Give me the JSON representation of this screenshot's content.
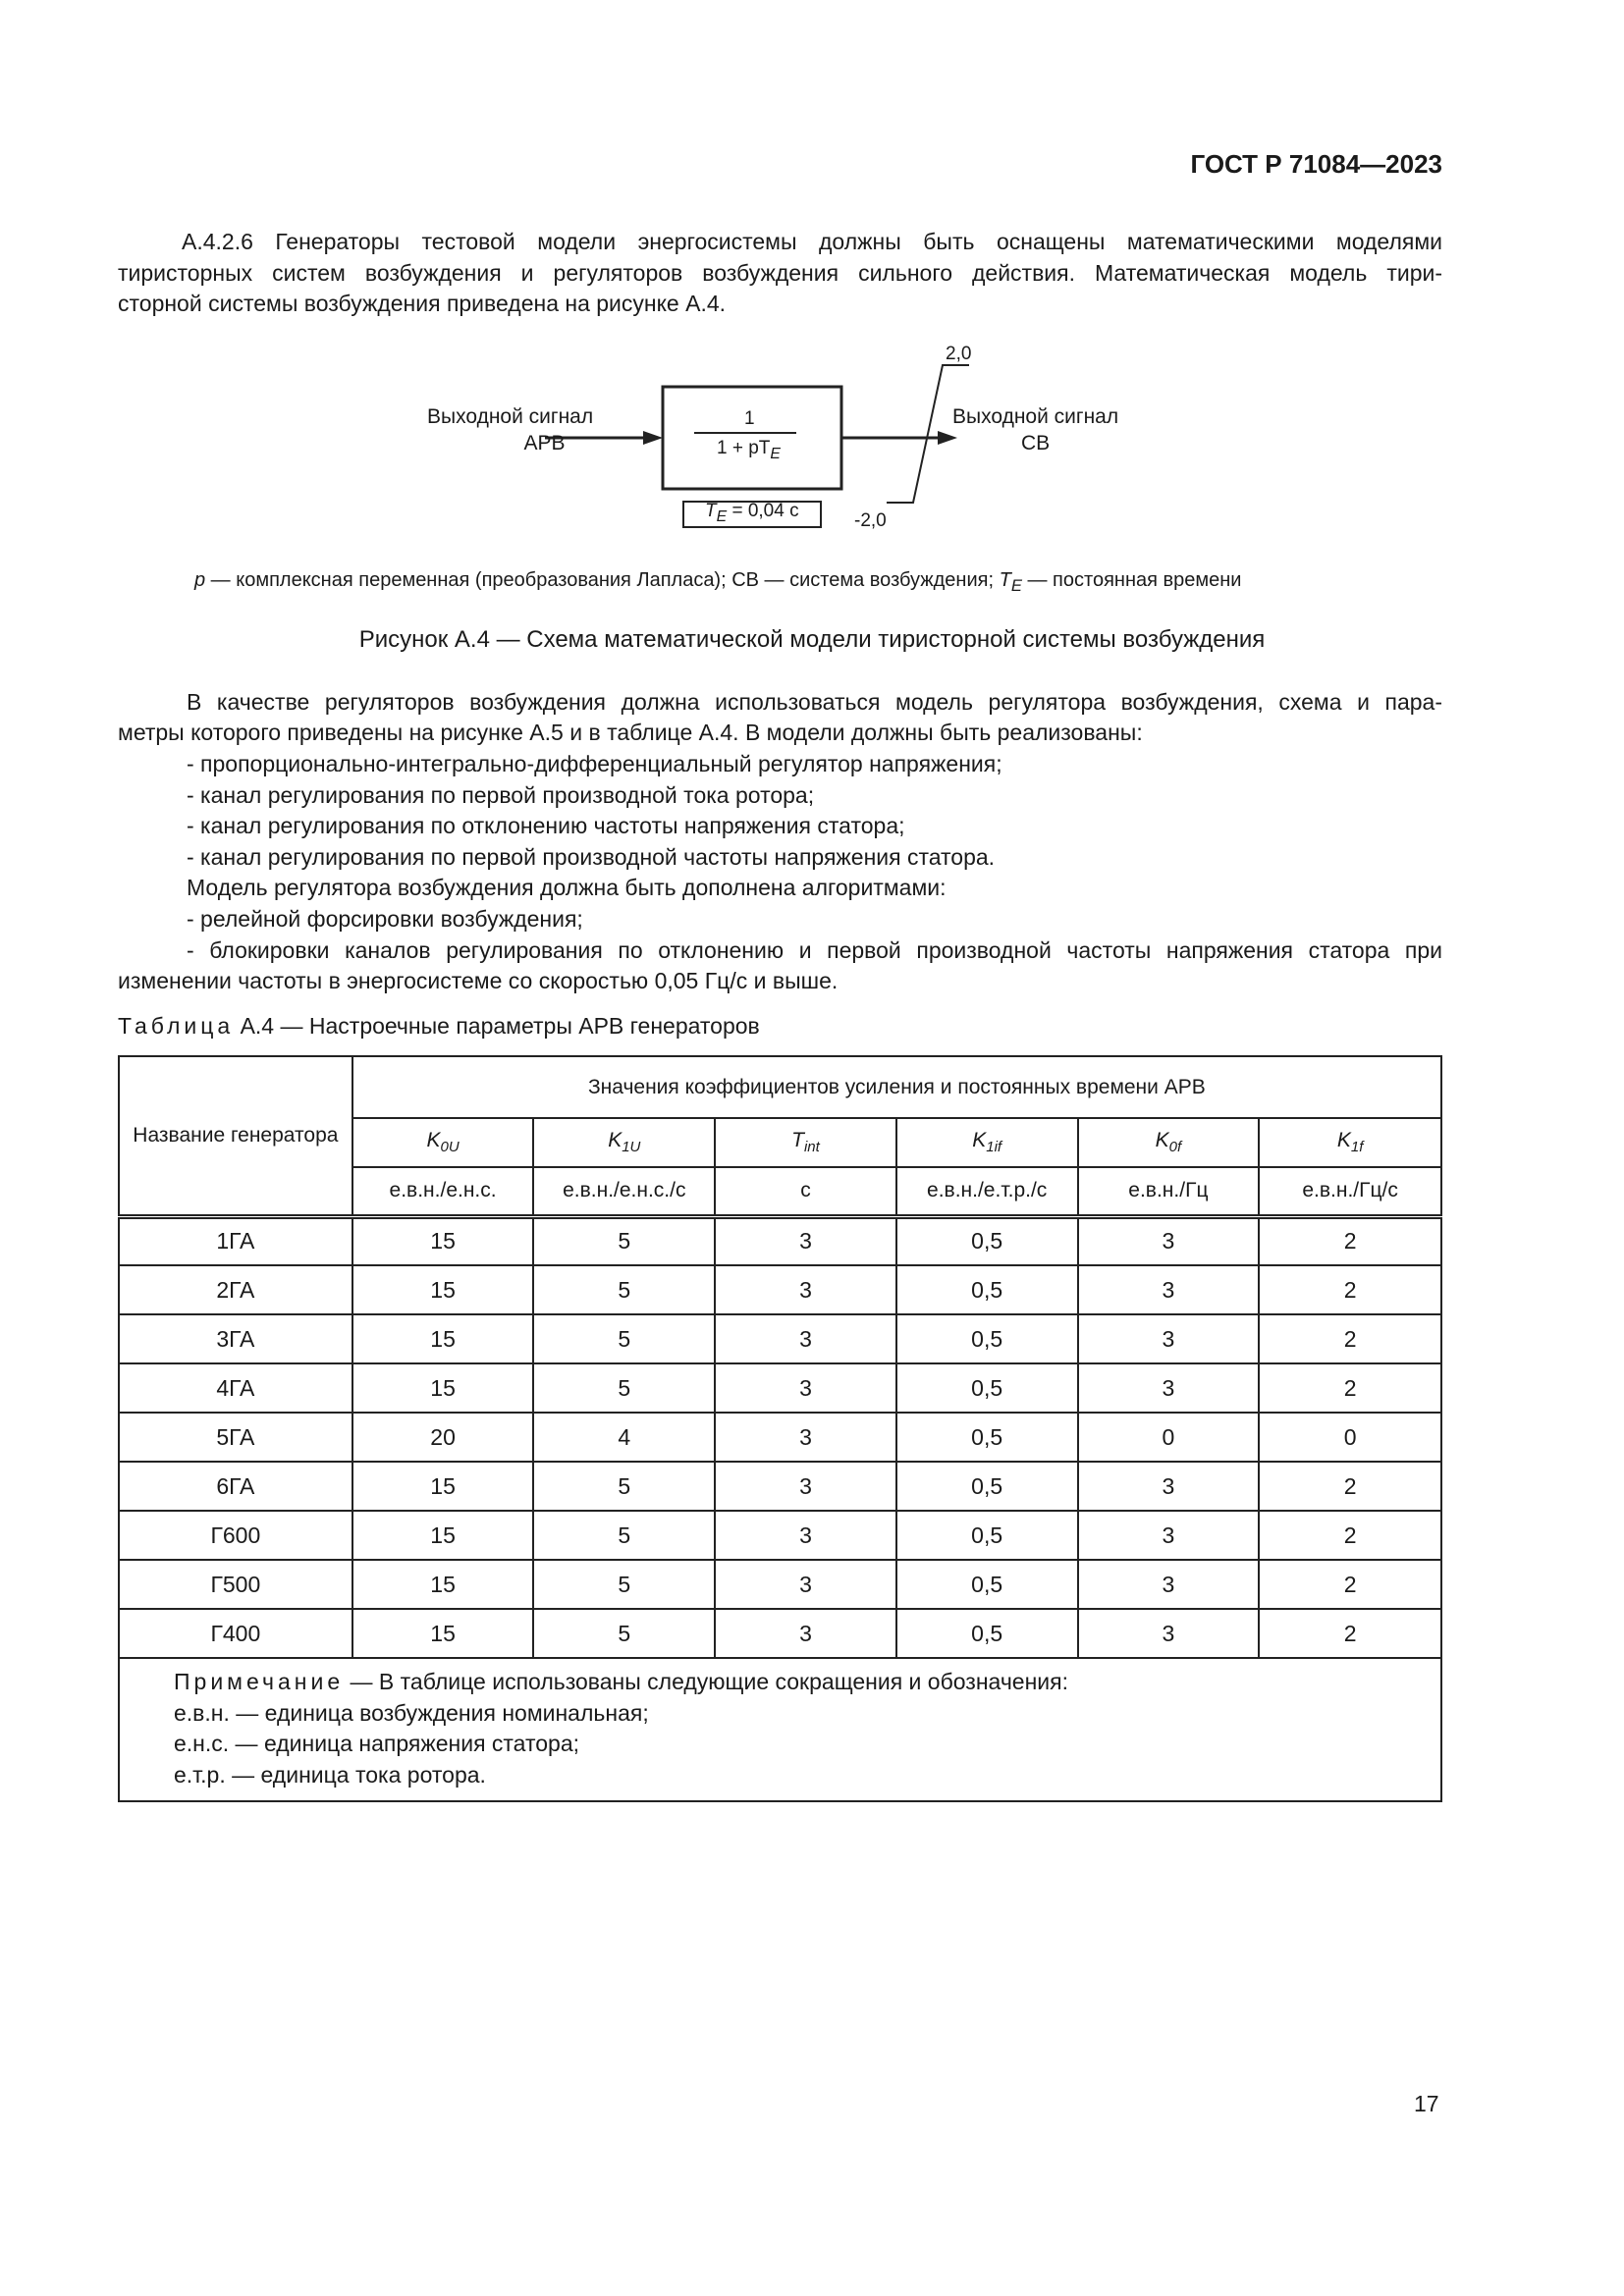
{
  "header": "ГОСТ Р 71084—2023",
  "para1": [
    "А.4.2.6 Генераторы тестовой модели энергосистемы должны быть оснащены математическими моделями",
    "тиристорных систем возбуждения и регуляторов возбуждения сильного действия. Математическая модель тири-",
    "сторной системы возбуждения приведена на рисунке А.4."
  ],
  "figure": {
    "input_line1": "Выходной сигнал",
    "input_line2": "АРВ",
    "num": "1",
    "den": "1 + pT",
    "den_sub": "E",
    "param": "T",
    "param_sub": "E",
    "param_val": " = 0,04 с",
    "output_line1": "Выходной сигнал",
    "output_line2": "СВ",
    "limit_max": "2,0",
    "limit_min": "-2,0",
    "legend": {
      "p": "p",
      "p_text": " — комплексная переменная (преобразования Лапласа); СВ — система возбуждения; ",
      "t": "T",
      "t_sub": "E",
      "t_text": " — постоянная времени"
    },
    "caption": "Рисунок А.4 — Схема математической модели тиристорной системы возбуждения"
  },
  "para2": [
    "В качестве регуляторов возбуждения должна использоваться модель регулятора возбуждения, схема и пара-",
    "метры которого приведены на рисунке А.5 и в таблице А.4. В модели должны быть реализованы:"
  ],
  "list1": [
    "- пропорционально-интегрально-дифференциальный регулятор напряжения;",
    "- канал регулирования по первой производной тока ротора;",
    "- канал регулирования по отклонению частоты напряжения статора;",
    "- канал регулирования по первой производной частоты напряжения статора.",
    "Модель регулятора возбуждения должна быть дополнена алгоритмами:",
    "- релейной форсировки возбуждения;"
  ],
  "last": [
    "- блокировки каналов регулирования по отклонению и первой производной частоты напряжения статора при",
    "изменении частоты в энергосистеме со скоростью 0,05 Гц/с и выше."
  ],
  "table": {
    "caption_word": "Таблица",
    "caption_rest": " А.4 — Настроечные параметры АРВ генераторов",
    "name_header": "Название генератора",
    "group_header": "Значения коэффициентов усиления и постоянных времени АРВ",
    "params": [
      {
        "s": "K",
        "sub": "0U"
      },
      {
        "s": "K",
        "sub": "1U"
      },
      {
        "s": "T",
        "sub": "int"
      },
      {
        "s": "K",
        "sub": "1if"
      },
      {
        "s": "K",
        "sub": "0f"
      },
      {
        "s": "K",
        "sub": "1f"
      }
    ],
    "units": [
      "е.в.н./е.н.с.",
      "е.в.н./е.н.с./с",
      "с",
      "е.в.н./е.т.р./с",
      "е.в.н./Гц",
      "е.в.н./Гц/с"
    ],
    "rows": [
      [
        "1ГА",
        "15",
        "5",
        "3",
        "0,5",
        "3",
        "2"
      ],
      [
        "2ГА",
        "15",
        "5",
        "3",
        "0,5",
        "3",
        "2"
      ],
      [
        "3ГА",
        "15",
        "5",
        "3",
        "0,5",
        "3",
        "2"
      ],
      [
        "4ГА",
        "15",
        "5",
        "3",
        "0,5",
        "3",
        "2"
      ],
      [
        "5ГА",
        "20",
        "4",
        "3",
        "0,5",
        "0",
        "0"
      ],
      [
        "6ГА",
        "15",
        "5",
        "3",
        "0,5",
        "3",
        "2"
      ],
      [
        "Г600",
        "15",
        "5",
        "3",
        "0,5",
        "3",
        "2"
      ],
      [
        "Г500",
        "15",
        "5",
        "3",
        "0,5",
        "3",
        "2"
      ],
      [
        "Г400",
        "15",
        "5",
        "3",
        "0,5",
        "3",
        "2"
      ]
    ],
    "note_word": "Примечание",
    "note_lines": [
      " — В таблице использованы следующие сокращения и обозначения:",
      "е.в.н. — единица возбуждения номинальная;",
      "е.н.с. — единица напряжения статора;",
      "е.т.р. — единица тока ротора."
    ]
  },
  "page_number": "17"
}
